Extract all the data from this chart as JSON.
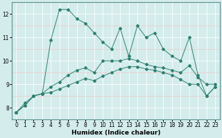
{
  "xlabel": "Humidex (Indice chaleur)",
  "x": [
    0,
    1,
    2,
    3,
    4,
    5,
    6,
    7,
    8,
    9,
    10,
    11,
    12,
    13,
    14,
    15,
    16,
    17,
    18,
    19,
    20,
    21,
    22,
    23
  ],
  "line_max": [
    7.8,
    8.2,
    8.5,
    8.6,
    10.9,
    12.2,
    12.2,
    11.8,
    11.6,
    11.2,
    10.8,
    10.5,
    11.4,
    10.2,
    11.5,
    11.0,
    11.2,
    10.5,
    10.2,
    10.0,
    11.0,
    9.4,
    8.5,
    8.9
  ],
  "line_mean": [
    7.8,
    8.1,
    8.5,
    8.6,
    8.9,
    9.1,
    9.4,
    9.6,
    9.7,
    9.5,
    10.0,
    10.0,
    10.0,
    10.1,
    10.0,
    9.85,
    9.75,
    9.7,
    9.6,
    9.5,
    9.8,
    9.3,
    9.0,
    9.0
  ],
  "line_min": [
    7.8,
    8.1,
    8.5,
    8.6,
    8.65,
    8.8,
    8.95,
    9.1,
    9.25,
    9.15,
    9.35,
    9.5,
    9.65,
    9.75,
    9.75,
    9.65,
    9.6,
    9.5,
    9.4,
    9.2,
    9.0,
    9.0,
    8.5,
    8.9
  ],
  "line_color": "#2e8070",
  "bg_color": "#d4ecec",
  "major_grid_color": "#ffffff",
  "minor_grid_color": "#f0c8c8",
  "ylim": [
    7.5,
    12.5
  ],
  "xlim": [
    -0.5,
    23.5
  ],
  "yticks": [
    8,
    9,
    10,
    11,
    12
  ],
  "xticks": [
    0,
    1,
    2,
    3,
    4,
    5,
    6,
    7,
    8,
    9,
    10,
    11,
    12,
    13,
    14,
    15,
    16,
    17,
    18,
    19,
    20,
    21,
    22,
    23
  ],
  "tick_fontsize": 5.5,
  "xlabel_fontsize": 6.5
}
